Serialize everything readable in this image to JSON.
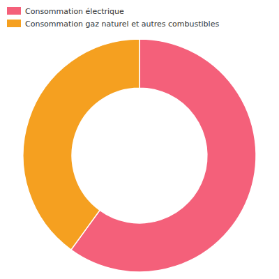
{
  "chart_data": {
    "type": "donut",
    "categories": [
      "Consommation électrique",
      "Consommation gaz naturel et autres combustibles"
    ],
    "values": [
      0.6,
      0.4
    ],
    "colors": [
      "#F4607A",
      "#F5A020"
    ],
    "legend": "top-left"
  }
}
